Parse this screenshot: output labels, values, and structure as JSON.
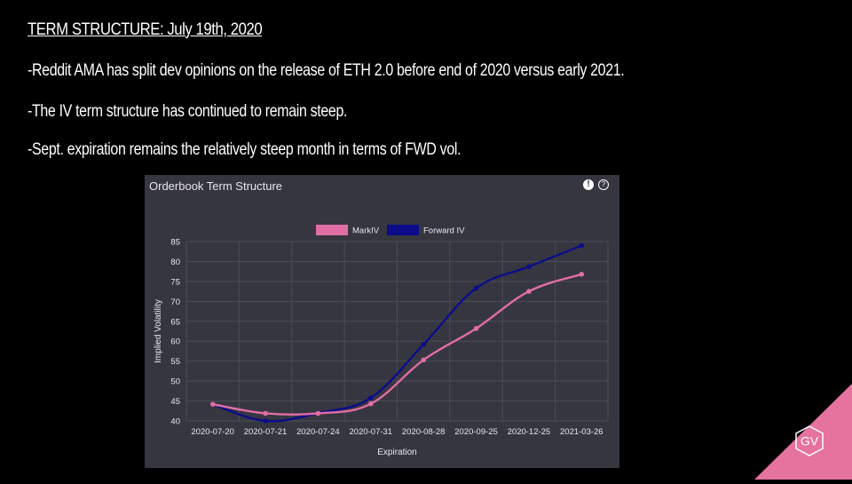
{
  "slide": {
    "title": "TERM STRUCTURE: July 19th, 2020",
    "bullets": [
      "-Reddit AMA has split dev opinions on the release of ETH 2.0 before end of 2020 versus early 2021.",
      "-The IV term structure has continued to remain steep.",
      "-Sept. expiration remains the relatively steep month in terms of FWD vol."
    ]
  },
  "panel": {
    "title": "Orderbook Term Structure",
    "warning_icon": "!",
    "help_icon": "?"
  },
  "logo": {
    "text": "GV",
    "color": "#e5739e"
  },
  "chart_data": {
    "type": "line",
    "title": "Orderbook Term Structure",
    "xlabel": "Expiration",
    "ylabel": "Implied Volatility",
    "categories": [
      "2020-07-20",
      "2020-07-21",
      "2020-07-24",
      "2020-07-31",
      "2020-08-28",
      "2020-09-25",
      "2020-12-25",
      "2021-03-26"
    ],
    "ylim": [
      40,
      85
    ],
    "yticks": [
      40,
      45,
      50,
      55,
      60,
      65,
      70,
      75,
      80,
      85
    ],
    "grid": true,
    "legend_position": "top-center",
    "series": [
      {
        "name": "MarkIV",
        "color": "#e06ea5",
        "values": [
          44.2,
          41.9,
          41.9,
          44.3,
          55.3,
          63.2,
          72.5,
          76.8
        ]
      },
      {
        "name": "Forward IV",
        "color": "#0c0c8a",
        "values": [
          44.2,
          40.0,
          42.0,
          45.8,
          59.2,
          73.3,
          78.7,
          84.0
        ]
      }
    ]
  }
}
